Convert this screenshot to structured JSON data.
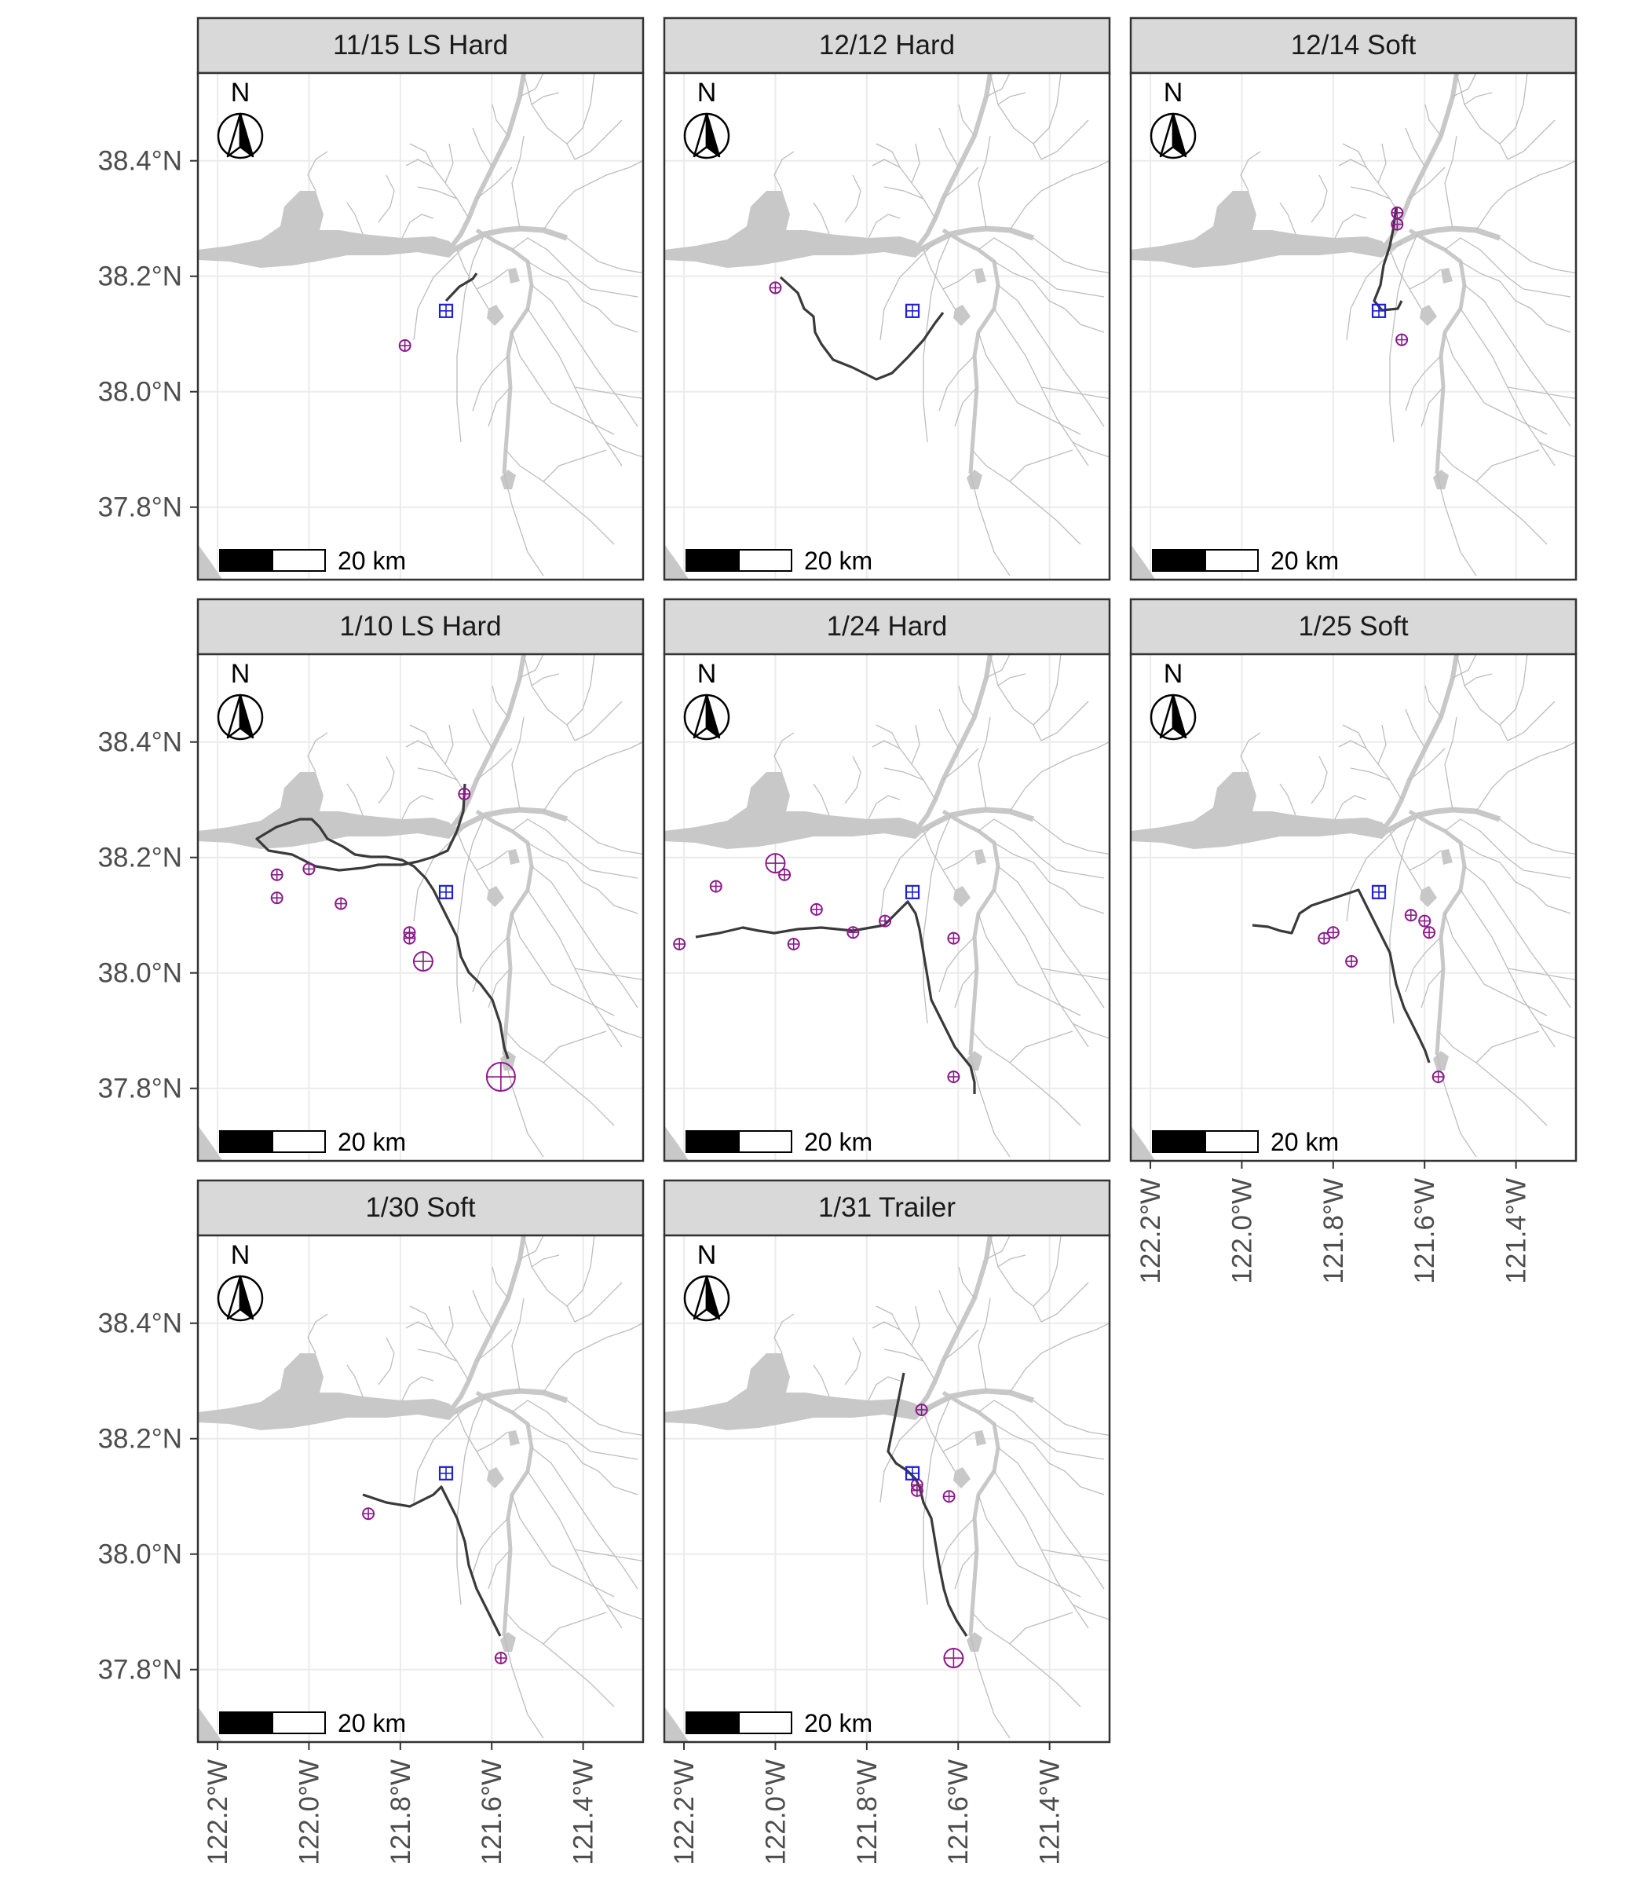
{
  "figure": {
    "y_tick_labels": [
      "38.4°N",
      "38.2°N",
      "38.0°N",
      "37.8°N"
    ],
    "x_tick_labels": [
      "122.2°W",
      "122.0°W",
      "121.8°W",
      "121.6°W",
      "121.4°W"
    ],
    "north_arrow_label": "N",
    "scale_bar_label": "20 km",
    "colors": {
      "water": "#c8c8c8",
      "waterway_lines": "#bdbdbd",
      "track": "#3a3a3a",
      "release_marker": "#1f1fd6",
      "detection_marker": "#8b1a8b",
      "strip_background": "#d9d9d9",
      "grid": "#ebebeb"
    },
    "icons": {
      "north_arrow": "north-arrow-icon",
      "release_site": "square-crosshair-icon",
      "detection": "circle-crosshair-icon"
    }
  },
  "panels": [
    {
      "title": "11/15 LS Hard",
      "route": "p1",
      "release": [
        [
          121.7,
          38.14
        ]
      ],
      "detections": [
        [
          121.79,
          38.08,
          1
        ]
      ]
    },
    {
      "title": "12/12 Hard",
      "route": "p2",
      "release": [
        [
          121.7,
          38.14
        ]
      ],
      "detections": [
        [
          122.0,
          38.18,
          1
        ]
      ]
    },
    {
      "title": "12/14 Soft",
      "route": "p3",
      "release": [
        [
          121.7,
          38.14
        ]
      ],
      "detections": [
        [
          121.66,
          38.31,
          1
        ],
        [
          121.66,
          38.29,
          1
        ],
        [
          121.65,
          38.09,
          1
        ]
      ]
    },
    {
      "title": "1/10 LS Hard",
      "route": "p4",
      "release": [
        [
          121.7,
          38.14
        ]
      ],
      "detections": [
        [
          121.66,
          38.31,
          1
        ],
        [
          122.07,
          38.17,
          1
        ],
        [
          122.0,
          38.18,
          1
        ],
        [
          121.93,
          38.12,
          1
        ],
        [
          122.07,
          38.13,
          1
        ],
        [
          121.78,
          38.07,
          1
        ],
        [
          121.78,
          38.06,
          1
        ],
        [
          121.75,
          38.02,
          2
        ],
        [
          121.58,
          37.82,
          3
        ]
      ]
    },
    {
      "title": "1/24 Hard",
      "route": "p5",
      "release": [
        [
          121.7,
          38.14
        ]
      ],
      "detections": [
        [
          122.0,
          38.19,
          2
        ],
        [
          121.98,
          38.17,
          1
        ],
        [
          122.13,
          38.15,
          1
        ],
        [
          121.91,
          38.11,
          1
        ],
        [
          121.83,
          38.07,
          1
        ],
        [
          121.76,
          38.09,
          1
        ],
        [
          121.96,
          38.05,
          1
        ],
        [
          122.21,
          38.05,
          1
        ],
        [
          121.61,
          38.06,
          1
        ],
        [
          121.61,
          37.82,
          1
        ]
      ]
    },
    {
      "title": "1/25 Soft",
      "route": "p6",
      "release": [
        [
          121.7,
          38.14
        ]
      ],
      "detections": [
        [
          121.63,
          38.1,
          1
        ],
        [
          121.6,
          38.09,
          1
        ],
        [
          121.59,
          38.07,
          1
        ],
        [
          121.8,
          38.07,
          1
        ],
        [
          121.82,
          38.06,
          1
        ],
        [
          121.76,
          38.02,
          1
        ],
        [
          121.57,
          37.82,
          1
        ]
      ]
    },
    {
      "title": "1/30 Soft",
      "route": "p7",
      "release": [
        [
          121.7,
          38.14
        ]
      ],
      "detections": [
        [
          121.87,
          38.07,
          1
        ],
        [
          121.58,
          37.82,
          1
        ]
      ]
    },
    {
      "title": "1/31 Trailer",
      "route": "p8",
      "release": [
        [
          121.7,
          38.14
        ]
      ],
      "detections": [
        [
          121.68,
          38.25,
          1
        ],
        [
          121.69,
          38.11,
          1
        ],
        [
          121.69,
          38.12,
          1
        ],
        [
          121.62,
          38.1,
          1
        ],
        [
          121.61,
          37.82,
          2
        ]
      ]
    }
  ]
}
